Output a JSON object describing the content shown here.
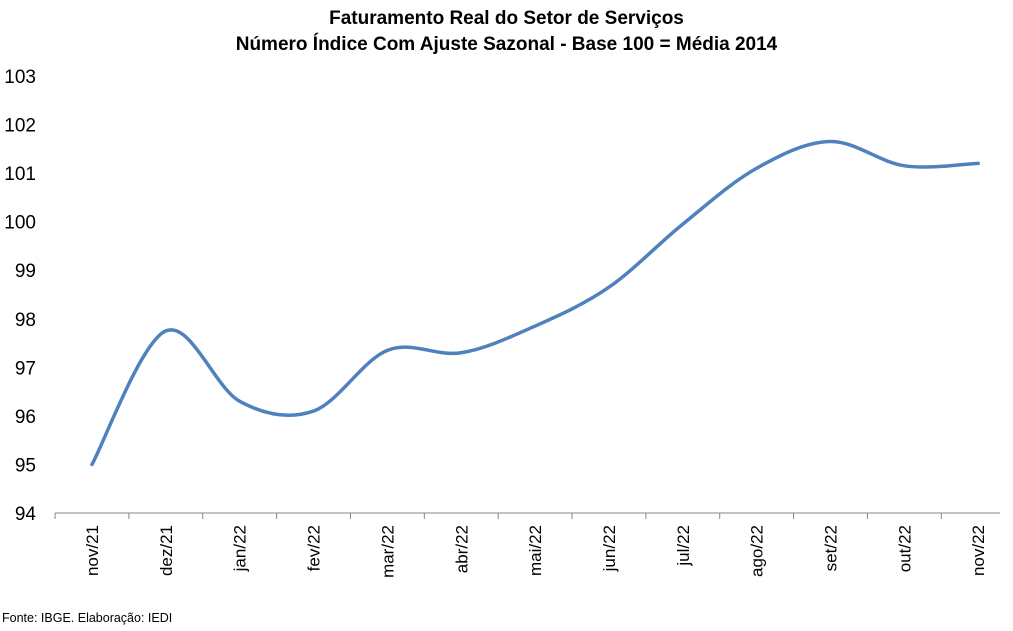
{
  "chart_data": {
    "type": "line",
    "title": "Faturamento Real do Setor de Serviços",
    "subtitle": "Número Índice Com Ajuste Sazonal - Base 100 = Média 2014",
    "xlabel": "",
    "ylabel": "",
    "categories": [
      "nov/21",
      "dez/21",
      "jan/22",
      "fev/22",
      "mar/22",
      "abr/22",
      "mai/22",
      "jun/22",
      "jul/22",
      "ago/22",
      "set/22",
      "out/22",
      "nov/22"
    ],
    "series": [
      {
        "values": [
          95.0,
          97.75,
          96.3,
          96.1,
          97.35,
          97.3,
          97.85,
          98.65,
          99.95,
          101.1,
          101.65,
          101.15,
          101.2
        ],
        "color": "#4f81bd"
      }
    ],
    "ylim": [
      94,
      103
    ],
    "yticks": [
      "94",
      "95",
      "96",
      "97",
      "98",
      "99",
      "100",
      "101",
      "102",
      "103"
    ],
    "grid": false,
    "legend": "none",
    "smooth": true
  },
  "source_note": "Fonte: IBGE. Elaboração: IEDI",
  "colors": {
    "line": "#4f81bd",
    "axis": "#868686",
    "text": "#000000"
  }
}
